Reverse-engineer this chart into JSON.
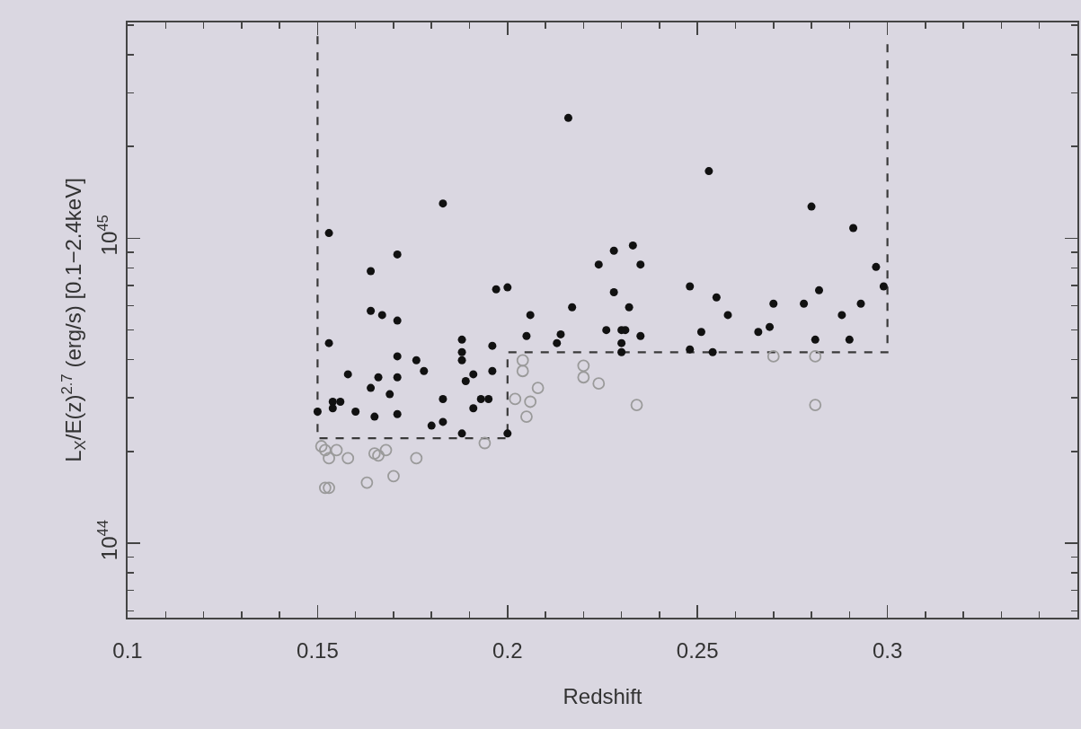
{
  "chart_data": {
    "type": "scatter",
    "xlabel": "Redshift",
    "ylabel": "L$_{X}$/E(z)$^{2.7}$ (erg/s) [0.1−2.4keV]",
    "log": "y",
    "xlim": [
      0.1,
      0.35
    ],
    "xticks": [
      0.1,
      {
        "value": 0.11,
        "label": null
      },
      {
        "value": 0.12,
        "label": null
      },
      {
        "value": 0.13,
        "label": null
      },
      {
        "value": 0.14,
        "label": null
      },
      0.15,
      {
        "value": 0.16,
        "label": null
      },
      {
        "value": 0.17,
        "label": null
      },
      {
        "value": 0.18,
        "label": null
      },
      {
        "value": 0.19,
        "label": null
      },
      0.2,
      {
        "value": 0.21,
        "label": null
      },
      {
        "value": 0.22,
        "label": null
      },
      {
        "value": 0.23,
        "label": null
      },
      {
        "value": 0.24,
        "label": null
      },
      0.25,
      {
        "value": 0.26,
        "label": null
      },
      {
        "value": 0.27,
        "label": null
      },
      {
        "value": 0.28,
        "label": null
      },
      {
        "value": 0.29,
        "label": null
      },
      0.3,
      {
        "value": 0.31,
        "label": null
      },
      {
        "value": 0.32,
        "label": null
      },
      {
        "value": 0.33,
        "label": null
      },
      {
        "value": 0.34,
        "label": null
      }
    ],
    "ylim": [
      5.7e+43,
      5.1e+45
    ],
    "yticks": [
      {
        "value": 6e+43,
        "label": null
      },
      {
        "value": 7e+43,
        "label": null
      },
      {
        "value": 8e+43,
        "label": null
      },
      {
        "value": 9e+43,
        "label": null
      },
      {
        "value": 1e+44,
        "label": "10$^{44}$"
      },
      {
        "value": 2e+44,
        "label": null
      },
      {
        "value": 3e+44,
        "label": null
      },
      {
        "value": 4e+44,
        "label": null
      },
      {
        "value": 5e+44,
        "label": null
      },
      {
        "value": 6e+44,
        "label": null
      },
      {
        "value": 7e+44,
        "label": null
      },
      {
        "value": 8e+44,
        "label": null
      },
      {
        "value": 9e+44,
        "label": null
      },
      {
        "value": 1e+45,
        "label": "10$^{45}$"
      },
      {
        "value": 2e+45,
        "label": null
      },
      {
        "value": 3e+45,
        "label": null
      },
      {
        "value": 4e+45,
        "label": null
      },
      {
        "value": 5e+45,
        "label": null
      }
    ],
    "grid": false,
    "series": [
      {
        "type": "line",
        "color": "#3a3a3a",
        "line_style": "dashed",
        "marker": "none",
        "x": [
          0.15,
          0.15,
          0.2,
          0.2,
          0.3,
          0.3
        ],
        "values": [
          4.6e+45,
          2.21e+44,
          2.21e+44,
          4.23e+44,
          4.23e+44,
          4.6e+45
        ]
      },
      {
        "color": "#9a9a9a",
        "marker": "circle-open",
        "x": [
          0.204,
          0.204,
          0.22,
          0.22,
          0.224,
          0.202,
          0.206,
          0.208,
          0.205,
          0.194,
          0.151,
          0.155,
          0.153,
          0.158,
          0.152,
          0.165,
          0.168,
          0.166,
          0.176,
          0.17,
          0.163,
          0.152,
          0.153,
          0.27,
          0.281,
          0.234,
          0.281
        ],
        "values": [
          3.98e+44,
          3.67e+44,
          3.82e+44,
          3.5e+44,
          3.34e+44,
          2.97e+44,
          2.91e+44,
          3.23e+44,
          2.6e+44,
          2.13e+44,
          2.08e+44,
          2.02e+44,
          1.9e+44,
          1.9e+44,
          2.02e+44,
          1.97e+44,
          2.02e+44,
          1.94e+44,
          1.9e+44,
          1.66e+44,
          1.58e+44,
          1.52e+44,
          1.52e+44,
          4.1e+44,
          4.1e+44,
          2.84e+44,
          2.84e+44
        ]
      },
      {
        "color": "#111111",
        "marker": "circle",
        "x": [
          0.216,
          0.183,
          0.153,
          0.171,
          0.164,
          0.197,
          0.2,
          0.224,
          0.164,
          0.167,
          0.171,
          0.206,
          0.217,
          0.153,
          0.188,
          0.205,
          0.214,
          0.213,
          0.196,
          0.253,
          0.28,
          0.291,
          0.233,
          0.228,
          0.235,
          0.297,
          0.248,
          0.299,
          0.228,
          0.282,
          0.255,
          0.232,
          0.278,
          0.27,
          0.293,
          0.258,
          0.288,
          0.226,
          0.23,
          0.231,
          0.235,
          0.251,
          0.266,
          0.269,
          0.281,
          0.29,
          0.23,
          0.23,
          0.248,
          0.254,
          0.171,
          0.176,
          0.188,
          0.188,
          0.158,
          0.166,
          0.171,
          0.178,
          0.191,
          0.189,
          0.196,
          0.164,
          0.169,
          0.183,
          0.154,
          0.156,
          0.154,
          0.15,
          0.16,
          0.165,
          0.171,
          0.18,
          0.183,
          0.193,
          0.195,
          0.191,
          0.188,
          0.2
        ],
        "values": [
          2.48e+45,
          1.3e+45,
          1.04e+45,
          8.85e+44,
          7.8e+44,
          6.8e+44,
          6.9e+44,
          8.2e+44,
          5.78e+44,
          5.6e+44,
          5.37e+44,
          5.6e+44,
          5.94e+44,
          4.53e+44,
          4.65e+44,
          4.78e+44,
          4.84e+44,
          4.53e+44,
          4.44e+44,
          1.66e+45,
          1.27e+45,
          1.08e+45,
          9.47e+44,
          9.1e+44,
          8.2e+44,
          8.05e+44,
          6.95e+44,
          6.95e+44,
          6.65e+44,
          6.75e+44,
          6.4e+44,
          5.94e+44,
          6.1e+44,
          6.1e+44,
          6.1e+44,
          5.6e+44,
          5.6e+44,
          5e+44,
          5e+44,
          5e+44,
          4.78e+44,
          4.93e+44,
          4.93e+44,
          5.12e+44,
          4.65e+44,
          4.65e+44,
          4.53e+44,
          4.23e+44,
          4.32e+44,
          4.23e+44,
          4.1e+44,
          3.98e+44,
          4.23e+44,
          3.98e+44,
          3.58e+44,
          3.5e+44,
          3.5e+44,
          3.67e+44,
          3.58e+44,
          3.4e+44,
          3.67e+44,
          3.23e+44,
          3.08e+44,
          2.97e+44,
          2.91e+44,
          2.91e+44,
          2.77e+44,
          2.7e+44,
          2.7e+44,
          2.6e+44,
          2.65e+44,
          2.43e+44,
          2.5e+44,
          2.97e+44,
          2.97e+44,
          2.77e+44,
          2.29e+44,
          2.29e+44
        ]
      }
    ]
  }
}
